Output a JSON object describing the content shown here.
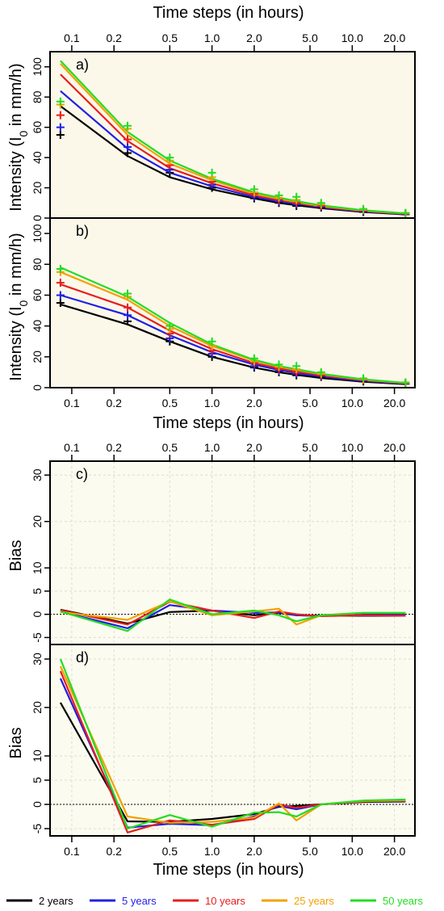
{
  "figure": {
    "top_axis_title_upper": "Time steps (in hours)",
    "bottom_axis_title_upper": "Time steps (in hours)",
    "bottom_axis_title_lower": "Time steps (in hours)",
    "y_title_intensity_main": "Intensity (I",
    "y_title_intensity_sub": "0",
    "y_title_intensity_tail": " in mm/h)",
    "y_title_bias": "Bias"
  },
  "colors": {
    "2 years": "#000000",
    "5 years": "#1f1fe6",
    "10 years": "#e61e1e",
    "25 years": "#f5a000",
    "50 years": "#22dd22",
    "panel_bg": "#fbf8ea",
    "panel_bg_bias": "#fbfbef",
    "grid": "#dcdcdc"
  },
  "legend": {
    "items": [
      {
        "label": "2 years",
        "color": "#000000"
      },
      {
        "label": "5 years",
        "color": "#1f1fe6"
      },
      {
        "label": "10 years",
        "color": "#e61e1e"
      },
      {
        "label": "25 years",
        "color": "#f5a000"
      },
      {
        "label": "50 years",
        "color": "#22dd22"
      }
    ]
  },
  "chart_data": [
    {
      "type": "line",
      "panel": "a)",
      "xscale": "log",
      "xlabel": "",
      "ylabel": "Intensity (I0 in mm/h)",
      "xlim": [
        0.07,
        28
      ],
      "ylim": [
        0,
        110
      ],
      "xticks": [
        0.1,
        0.2,
        0.5,
        1.0,
        2.0,
        5.0,
        10.0,
        20.0
      ],
      "xticklabels": [
        "0.1",
        "0.2",
        "0.5",
        "1.0",
        "2.0",
        "5.0",
        "10.0",
        "20.0"
      ],
      "yticks": [
        0,
        20,
        40,
        60,
        80,
        100
      ],
      "x": [
        0.083,
        0.25,
        0.5,
        1,
        2,
        3,
        4,
        6,
        12,
        24
      ],
      "series": [
        {
          "name": "2 years",
          "values": [
            74,
            41,
            27,
            19,
            13,
            10,
            8.5,
            6.5,
            4,
            2.4
          ]
        },
        {
          "name": "5 years",
          "values": [
            84,
            46,
            30,
            21,
            14,
            11,
            9.5,
            7,
            4.3,
            2.6
          ]
        },
        {
          "name": "10 years",
          "values": [
            95,
            51,
            33,
            23,
            15,
            12,
            10,
            7.5,
            4.6,
            2.8
          ]
        },
        {
          "name": "25 years",
          "values": [
            102,
            55,
            36,
            25,
            16,
            12.8,
            10.6,
            8,
            4.9,
            3
          ]
        },
        {
          "name": "50 years",
          "values": [
            104,
            57,
            38,
            26,
            17,
            13.5,
            11.2,
            8.4,
            5.1,
            3.1
          ]
        }
      ],
      "observed": [
        {
          "name": "2 years",
          "values": [
            55,
            43,
            30,
            20,
            13,
            10,
            8,
            7,
            4,
            2.5
          ]
        },
        {
          "name": "5 years",
          "values": [
            60,
            47,
            32,
            22,
            14,
            11,
            9,
            7.5,
            4.5,
            2.7
          ]
        },
        {
          "name": "10 years",
          "values": [
            68,
            52,
            35,
            24,
            16,
            12,
            10,
            8,
            5,
            2.9
          ]
        },
        {
          "name": "25 years",
          "values": [
            75,
            59,
            38,
            27,
            17,
            13.5,
            12,
            9,
            5.5,
            3.2
          ]
        },
        {
          "name": "50 years",
          "values": [
            77,
            61,
            40,
            30,
            19,
            15,
            14,
            10,
            6,
            3.4
          ]
        }
      ]
    },
    {
      "type": "line",
      "panel": "b)",
      "xscale": "log",
      "xlabel": "Time steps (in hours)",
      "ylabel": "Intensity (I0 in mm/h)",
      "xlim": [
        0.07,
        28
      ],
      "ylim": [
        0,
        110
      ],
      "xticks": [
        0.1,
        0.2,
        0.5,
        1.0,
        2.0,
        5.0,
        10.0,
        20.0
      ],
      "xticklabels": [
        "0.1",
        "0.2",
        "0.5",
        "1.0",
        "2.0",
        "5.0",
        "10.0",
        "20.0"
      ],
      "yticks": [
        0,
        20,
        40,
        60,
        80,
        100
      ],
      "x": [
        0.083,
        0.25,
        0.5,
        1,
        2,
        3,
        4,
        6,
        12,
        24
      ],
      "series": [
        {
          "name": "2 years",
          "values": [
            54,
            41,
            30,
            20,
            13,
            10,
            8.3,
            6.3,
            3.9,
            2.3
          ]
        },
        {
          "name": "5 years",
          "values": [
            60,
            47,
            34,
            23,
            15,
            11.5,
            9.5,
            7.2,
            4.4,
            2.6
          ]
        },
        {
          "name": "10 years",
          "values": [
            67,
            52,
            37,
            25,
            16,
            12.5,
            10.5,
            8,
            4.8,
            2.8
          ]
        },
        {
          "name": "25 years",
          "values": [
            75,
            57,
            40,
            27,
            17.5,
            13.5,
            11.5,
            8.7,
            5.2,
            3
          ]
        },
        {
          "name": "50 years",
          "values": [
            78,
            59,
            42,
            28,
            18,
            14,
            12,
            9,
            5.4,
            3.1
          ]
        }
      ],
      "observed": [
        {
          "name": "2 years",
          "values": [
            55,
            43,
            30,
            20,
            13,
            10,
            8,
            7,
            4,
            2.5
          ]
        },
        {
          "name": "5 years",
          "values": [
            60,
            47,
            32,
            22,
            14,
            11,
            9,
            7.5,
            4.5,
            2.7
          ]
        },
        {
          "name": "10 years",
          "values": [
            68,
            52,
            35,
            24,
            16,
            12,
            10,
            8,
            5,
            2.9
          ]
        },
        {
          "name": "25 years",
          "values": [
            75,
            59,
            38,
            27,
            17,
            13.5,
            12,
            9,
            5.5,
            3.2
          ]
        },
        {
          "name": "50 years",
          "values": [
            77,
            61,
            40,
            30,
            19,
            15,
            14,
            10,
            6,
            3.4
          ]
        }
      ]
    },
    {
      "type": "line",
      "panel": "c)",
      "xscale": "log",
      "xlabel": "Time steps (in hours)",
      "ylabel": "Bias",
      "xlim": [
        0.07,
        28
      ],
      "ylim": [
        -6.5,
        33
      ],
      "xticks": [
        0.1,
        0.2,
        0.5,
        1.0,
        2.0,
        5.0,
        10.0,
        20.0
      ],
      "xticklabels": [
        "0.1",
        "0.2",
        "0.5",
        "1.0",
        "2.0",
        "5.0",
        "10.0",
        "20.0"
      ],
      "yticks": [
        -5,
        0,
        5,
        10,
        20,
        30
      ],
      "reference_line": 0,
      "x": [
        0.083,
        0.25,
        0.5,
        1,
        2,
        3,
        4,
        6,
        12,
        24
      ],
      "series": [
        {
          "name": "2 years",
          "values": [
            1,
            -2,
            0.5,
            0.8,
            -0.2,
            0.3,
            -0.2,
            -0.3,
            -0.3,
            -0.3
          ]
        },
        {
          "name": "5 years",
          "values": [
            0.6,
            -3,
            2,
            0.8,
            0.3,
            0.4,
            -0.2,
            -0.3,
            0,
            -0.1
          ]
        },
        {
          "name": "10 years",
          "values": [
            0.9,
            -2.2,
            2.7,
            0.8,
            -0.8,
            0.6,
            0,
            -0.4,
            -0.2,
            -0.3
          ]
        },
        {
          "name": "25 years",
          "values": [
            0.5,
            -1.2,
            2.8,
            -0.2,
            0.6,
            1.2,
            -2.2,
            -0.2,
            0.3,
            0.3
          ]
        },
        {
          "name": "50 years",
          "values": [
            0.6,
            -3.6,
            3.2,
            0,
            0.8,
            -0.2,
            -1.5,
            -0.2,
            0.3,
            0.3
          ]
        }
      ]
    },
    {
      "type": "line",
      "panel": "d)",
      "xscale": "log",
      "xlabel": "Time steps (in hours)",
      "ylabel": "Bias",
      "xlim": [
        0.07,
        28
      ],
      "ylim": [
        -6.5,
        33
      ],
      "xticks": [
        0.1,
        0.2,
        0.5,
        1.0,
        2.0,
        5.0,
        10.0,
        20.0
      ],
      "xticklabels": [
        "0.1",
        "0.2",
        "0.5",
        "1.0",
        "2.0",
        "5.0",
        "10.0",
        "20.0"
      ],
      "yticks": [
        -5,
        0,
        5,
        10,
        20,
        30
      ],
      "reference_line": 0,
      "x": [
        0.083,
        0.25,
        0.5,
        1,
        2,
        3,
        4,
        6,
        12,
        24
      ],
      "series": [
        {
          "name": "2 years",
          "values": [
            21,
            -3.5,
            -3.6,
            -3,
            -2,
            -0.5,
            -0.3,
            0,
            0.5,
            0.6
          ]
        },
        {
          "name": "5 years",
          "values": [
            26,
            -4.8,
            -4,
            -4.3,
            -2.5,
            -0.3,
            -1,
            0,
            0.6,
            0.7
          ]
        },
        {
          "name": "10 years",
          "values": [
            27.5,
            -5.8,
            -3.3,
            -4.2,
            -3,
            0,
            -0.7,
            0,
            0.6,
            0.8
          ]
        },
        {
          "name": "25 years",
          "values": [
            28.5,
            -2.5,
            -3.8,
            -3.6,
            -2.7,
            0.2,
            -3.3,
            0,
            0.7,
            0.8
          ]
        },
        {
          "name": "50 years",
          "values": [
            30,
            -5,
            -2.2,
            -4.6,
            -1.7,
            -1.6,
            -2.5,
            0,
            0.8,
            1
          ]
        }
      ]
    }
  ]
}
